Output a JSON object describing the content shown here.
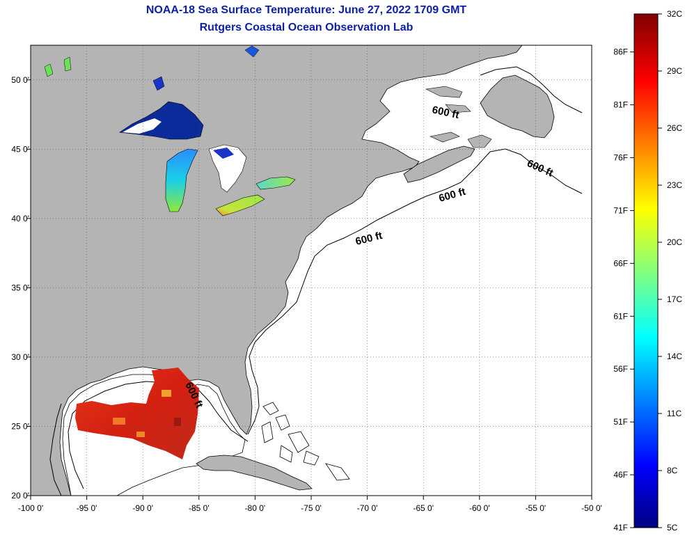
{
  "title": {
    "line1": "NOAA-18 Sea Surface Temperature:  June 27, 2022 1709 GMT",
    "line2": "Rutgers Coastal Ocean Observation Lab",
    "color": "#0b1fa8"
  },
  "map": {
    "land_color": "#b4b4b4",
    "water_color": "#ffffff",
    "lon_range": [
      -100,
      -50
    ],
    "lat_range": [
      20,
      52.5
    ],
    "lon_ticks": [
      {
        "value": -100,
        "label": "-100 0'"
      },
      {
        "value": -95,
        "label": "-95 0'"
      },
      {
        "value": -90,
        "label": "-90 0'"
      },
      {
        "value": -85,
        "label": "-85 0'"
      },
      {
        "value": -80,
        "label": "-80 0'"
      },
      {
        "value": -75,
        "label": "-75 0'"
      },
      {
        "value": -70,
        "label": "-70 0'"
      },
      {
        "value": -65,
        "label": "-65 0'"
      },
      {
        "value": -60,
        "label": "-60 0'"
      },
      {
        "value": -55,
        "label": "-55 0'"
      },
      {
        "value": -50,
        "label": "-50 0'"
      }
    ],
    "lat_ticks": [
      {
        "value": 20,
        "label": "20 0'"
      },
      {
        "value": 25,
        "label": "25 0'"
      },
      {
        "value": 30,
        "label": "30 0'"
      },
      {
        "value": 35,
        "label": "35 0'"
      },
      {
        "value": 40,
        "label": "40 0'"
      },
      {
        "value": 45,
        "label": "45 0'"
      },
      {
        "value": 50,
        "label": "50 0'"
      }
    ],
    "contour_labels": [
      "600 ft",
      "600 ft",
      "600 ft",
      "600 ft",
      "600 ft"
    ]
  },
  "colorbar": {
    "min_c": 5,
    "max_c": 32,
    "celsius_labels": [
      "32C",
      "29C",
      "26C",
      "23C",
      "20C",
      "17C",
      "14C",
      "11C",
      "8C",
      "5C"
    ],
    "fahrenheit_labels": [
      "86F",
      "81F",
      "76F",
      "71F",
      "66F",
      "61F",
      "56F",
      "51F",
      "46F",
      "41F"
    ],
    "colormap": "jet"
  }
}
